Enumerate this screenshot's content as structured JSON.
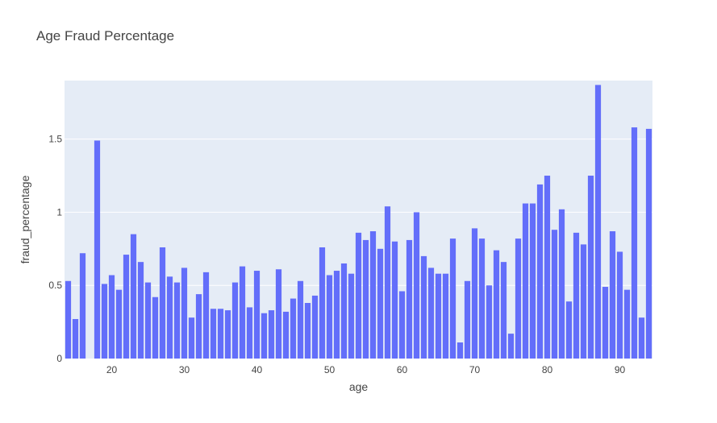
{
  "chart_data": {
    "type": "bar",
    "title": "Age Fraud Percentage",
    "xlabel": "age",
    "ylabel": "fraud_percentage",
    "xlim": [
      13.5,
      94.5
    ],
    "ylim": [
      0,
      1.9
    ],
    "x_ticks": [
      20,
      30,
      40,
      50,
      60,
      70,
      80,
      90
    ],
    "y_ticks": [
      0,
      0.5,
      1,
      1.5
    ],
    "y_tick_labels": [
      "0",
      "0.5",
      "1",
      "1.5"
    ],
    "grid": true,
    "bar_color": "#636efa",
    "plot_bg": "#e5ecf6",
    "x": [
      14,
      15,
      16,
      18,
      19,
      20,
      21,
      22,
      23,
      24,
      25,
      26,
      27,
      28,
      29,
      30,
      31,
      32,
      33,
      34,
      35,
      36,
      37,
      38,
      39,
      40,
      41,
      42,
      43,
      44,
      45,
      46,
      47,
      48,
      49,
      50,
      51,
      52,
      53,
      54,
      55,
      56,
      57,
      58,
      59,
      60,
      61,
      62,
      63,
      64,
      65,
      66,
      67,
      68,
      69,
      70,
      71,
      72,
      73,
      74,
      75,
      76,
      77,
      78,
      79,
      80,
      81,
      82,
      83,
      84,
      85,
      86,
      87,
      88,
      89,
      90,
      91,
      92,
      93,
      94
    ],
    "values": [
      0.53,
      0.27,
      0.72,
      1.49,
      0.51,
      0.57,
      0.47,
      0.71,
      0.85,
      0.66,
      0.52,
      0.42,
      0.76,
      0.56,
      0.52,
      0.62,
      0.28,
      0.44,
      0.59,
      0.34,
      0.34,
      0.33,
      0.52,
      0.63,
      0.35,
      0.6,
      0.31,
      0.33,
      0.61,
      0.32,
      0.41,
      0.53,
      0.38,
      0.43,
      0.76,
      0.57,
      0.6,
      0.65,
      0.58,
      0.86,
      0.81,
      0.87,
      0.75,
      1.04,
      0.8,
      0.46,
      0.81,
      1.0,
      0.7,
      0.62,
      0.58,
      0.58,
      0.82,
      0.11,
      0.53,
      0.89,
      0.82,
      0.5,
      0.74,
      0.66,
      0.17,
      0.82,
      1.06,
      1.06,
      1.19,
      1.25,
      0.88,
      1.02,
      0.39,
      0.86,
      0.78,
      1.25,
      1.87,
      0.49,
      0.87,
      0.73,
      0.47,
      1.58,
      0.28,
      1.57
    ]
  }
}
